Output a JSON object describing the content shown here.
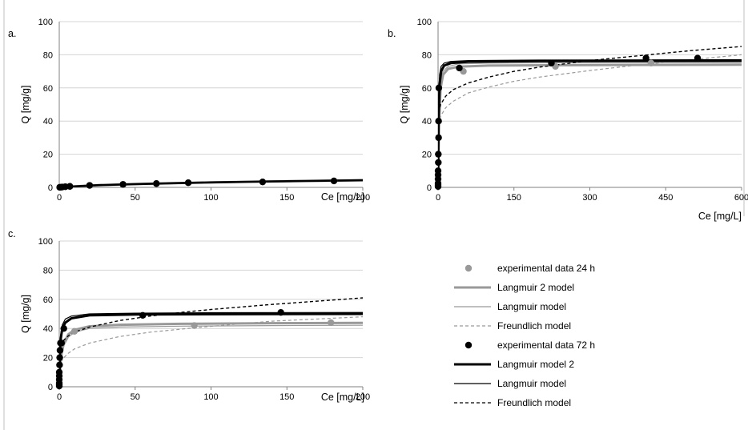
{
  "figure": {
    "colors": {
      "gray": "#999999",
      "black": "#000000",
      "axis": "#808080",
      "grid": "#d4d4d4"
    }
  },
  "legend": {
    "items": [
      {
        "label": "experimental data 24 h",
        "kind": "marker",
        "color": "#999999"
      },
      {
        "label": "Langmuir 2 model",
        "kind": "line",
        "color": "#999999",
        "width": "thick",
        "dash": "solid"
      },
      {
        "label": "Langmuir model",
        "kind": "line",
        "color": "#999999",
        "width": "thin",
        "dash": "solid"
      },
      {
        "label": "Freundlich model",
        "kind": "line",
        "color": "#999999",
        "width": "thin",
        "dash": "dashed"
      },
      {
        "label": "experimental data 72 h",
        "kind": "marker",
        "color": "#000000"
      },
      {
        "label": "Langmuir model 2",
        "kind": "line",
        "color": "#000000",
        "width": "thick",
        "dash": "solid"
      },
      {
        "label": "Langmuir model",
        "kind": "line",
        "color": "#000000",
        "width": "thin",
        "dash": "solid"
      },
      {
        "label": "Freundlich model",
        "kind": "line",
        "color": "#000000",
        "width": "thin",
        "dash": "dashed"
      }
    ]
  },
  "chart_data": [
    {
      "panel": "a.",
      "type": "scatter",
      "xlabel": "Ce [mg/L]",
      "ylabel": "Q [mg/g]",
      "xlim": [
        0,
        200
      ],
      "ylim": [
        0,
        100
      ],
      "xticks": [
        0,
        50,
        100,
        150,
        200
      ],
      "yticks": [
        0,
        20,
        40,
        60,
        80,
        100
      ],
      "grid": true,
      "series": [
        {
          "kind": "points",
          "color": "#999999",
          "x": [
            0.3,
            1,
            2,
            4,
            7,
            20,
            42,
            64,
            85,
            134,
            181
          ],
          "y": [
            0.05,
            0.1,
            0.2,
            0.4,
            0.6,
            1.2,
            1.8,
            2.3,
            2.8,
            3.3,
            3.9
          ]
        },
        {
          "kind": "points",
          "color": "#000000",
          "x": [
            0.3,
            1,
            2,
            4,
            7,
            20,
            42,
            64,
            85,
            134,
            181
          ],
          "y": [
            0.05,
            0.1,
            0.2,
            0.4,
            0.6,
            1.2,
            1.8,
            2.3,
            2.8,
            3.3,
            3.9
          ]
        },
        {
          "kind": "line",
          "color": "#999999",
          "width": 3,
          "dash": "",
          "x": [
            0,
            10,
            25,
            50,
            75,
            100,
            125,
            150,
            175,
            200
          ],
          "y": [
            0,
            0.6,
            1.3,
            2.0,
            2.5,
            3.0,
            3.4,
            3.7,
            4.0,
            4.3
          ]
        },
        {
          "kind": "line",
          "color": "#000000",
          "width": 2.6,
          "dash": "",
          "x": [
            0,
            10,
            25,
            50,
            75,
            100,
            125,
            150,
            175,
            200
          ],
          "y": [
            0,
            0.6,
            1.3,
            2.0,
            2.5,
            3.0,
            3.4,
            3.7,
            4.0,
            4.3
          ]
        }
      ]
    },
    {
      "panel": "b.",
      "type": "scatter",
      "xlabel": "Ce [mg/L]",
      "ylabel": "Q [mg/g]",
      "xlim": [
        0,
        600
      ],
      "ylim": [
        0,
        100
      ],
      "xticks": [
        0,
        150,
        300,
        450,
        600
      ],
      "yticks": [
        0,
        20,
        40,
        60,
        80,
        100
      ],
      "grid": true,
      "series": [
        {
          "kind": "points",
          "color": "#999999",
          "x": [
            50,
            232,
            421
          ],
          "y": [
            70,
            73,
            75
          ]
        },
        {
          "kind": "points",
          "color": "#000000",
          "x": [
            0,
            0,
            0,
            0,
            0,
            0,
            0.5,
            0.5,
            1,
            1,
            1.5,
            42,
            224,
            411,
            513
          ],
          "y": [
            0.5,
            1.5,
            2.5,
            5,
            7.5,
            10,
            15,
            20,
            30,
            40,
            60,
            72,
            75,
            78,
            78
          ]
        },
        {
          "kind": "line",
          "color": "#999999",
          "width": 3,
          "dash": "",
          "x": [
            0,
            2,
            5,
            10,
            20,
            40,
            100,
            300,
            600
          ],
          "y": [
            0,
            40,
            60,
            68,
            71.5,
            72.8,
            73.5,
            73.8,
            74
          ]
        },
        {
          "kind": "line",
          "color": "#999999",
          "width": 1.2,
          "dash": "",
          "x": [
            0,
            2,
            5,
            10,
            20,
            40,
            100,
            300,
            600
          ],
          "y": [
            0,
            45,
            65,
            70,
            73,
            74.5,
            75,
            75.3,
            75.4
          ]
        },
        {
          "kind": "line",
          "color": "#999999",
          "width": 1.2,
          "dash": "4 3",
          "x": [
            1,
            5,
            15,
            30,
            60,
            100,
            150,
            200,
            300,
            400,
            500,
            600
          ],
          "y": [
            38,
            43,
            48,
            52,
            57,
            60.5,
            64,
            66.5,
            70.5,
            74,
            77,
            80
          ]
        },
        {
          "kind": "line",
          "color": "#000000",
          "width": 3,
          "dash": "",
          "x": [
            0,
            1,
            3,
            6,
            12,
            25,
            60,
            200,
            600
          ],
          "y": [
            0,
            40,
            62,
            70,
            73.5,
            75,
            75.8,
            76.2,
            76.4
          ]
        },
        {
          "kind": "line",
          "color": "#000000",
          "width": 1.2,
          "dash": "",
          "x": [
            0,
            1,
            3,
            6,
            12,
            25,
            60,
            200,
            600
          ],
          "y": [
            0,
            45,
            68,
            73,
            75,
            76,
            76.5,
            76.8,
            77
          ]
        },
        {
          "kind": "line",
          "color": "#000000",
          "width": 1.4,
          "dash": "4 3",
          "x": [
            1,
            5,
            15,
            30,
            60,
            100,
            150,
            200,
            300,
            400,
            500,
            600
          ],
          "y": [
            45,
            50,
            55,
            59,
            63,
            66.5,
            70,
            72.5,
            76.5,
            79.5,
            82.5,
            85
          ]
        }
      ]
    },
    {
      "panel": "c.",
      "type": "scatter",
      "xlabel": "Ce [mg/L]",
      "ylabel": "Q [mg/g]",
      "xlim": [
        0,
        200
      ],
      "ylim": [
        0,
        100
      ],
      "xticks": [
        0,
        50,
        100,
        150,
        200
      ],
      "yticks": [
        0,
        20,
        40,
        60,
        80,
        100
      ],
      "grid": true,
      "series": [
        {
          "kind": "points",
          "color": "#999999",
          "x": [
            10,
            89,
            179
          ],
          "y": [
            38,
            42,
            44
          ]
        },
        {
          "kind": "points",
          "color": "#000000",
          "x": [
            0,
            0,
            0,
            0,
            0,
            0,
            0.2,
            0.3,
            0.5,
            0.8,
            1.5,
            3,
            55,
            146
          ],
          "y": [
            0.5,
            1.5,
            2.5,
            5,
            7.5,
            10,
            15,
            20,
            25,
            30,
            30,
            40,
            49,
            51
          ]
        },
        {
          "kind": "line",
          "color": "#999999",
          "width": 3,
          "dash": "",
          "x": [
            0,
            1,
            3,
            6,
            10,
            20,
            40,
            80,
            140,
            200
          ],
          "y": [
            0,
            20,
            30,
            36,
            39,
            41.5,
            42.5,
            43.2,
            43.6,
            43.8
          ]
        },
        {
          "kind": "line",
          "color": "#999999",
          "width": 1.2,
          "dash": "",
          "x": [
            0,
            1,
            3,
            6,
            10,
            20,
            40,
            80,
            140,
            200
          ],
          "y": [
            0,
            18,
            28,
            34,
            37.5,
            40,
            41,
            41.6,
            42,
            42.2
          ]
        },
        {
          "kind": "line",
          "color": "#999999",
          "width": 1.2,
          "dash": "4 3",
          "x": [
            1,
            3,
            6,
            10,
            20,
            40,
            60,
            80,
            100,
            140,
            200
          ],
          "y": [
            17,
            20,
            23,
            26,
            30,
            34.5,
            37.5,
            39.5,
            41.5,
            45,
            48
          ]
        },
        {
          "kind": "line",
          "color": "#000000",
          "width": 3,
          "dash": "",
          "x": [
            0,
            0.5,
            1,
            2,
            4,
            8,
            20,
            50,
            100,
            200
          ],
          "y": [
            0,
            25,
            33,
            40,
            44,
            47,
            49,
            49.6,
            49.8,
            50
          ]
        },
        {
          "kind": "line",
          "color": "#000000",
          "width": 1.2,
          "dash": "",
          "x": [
            0,
            0.5,
            1,
            2,
            4,
            8,
            20,
            50,
            100,
            200
          ],
          "y": [
            0,
            28,
            36,
            42.5,
            46.5,
            48.5,
            50,
            50.5,
            50.8,
            51
          ]
        },
        {
          "kind": "line",
          "color": "#000000",
          "width": 1.4,
          "dash": "4 3",
          "x": [
            1,
            3,
            6,
            10,
            20,
            40,
            60,
            80,
            100,
            140,
            200
          ],
          "y": [
            28,
            32,
            35,
            37.5,
            41,
            45.5,
            48.5,
            51,
            53,
            56.5,
            61
          ]
        }
      ]
    }
  ]
}
